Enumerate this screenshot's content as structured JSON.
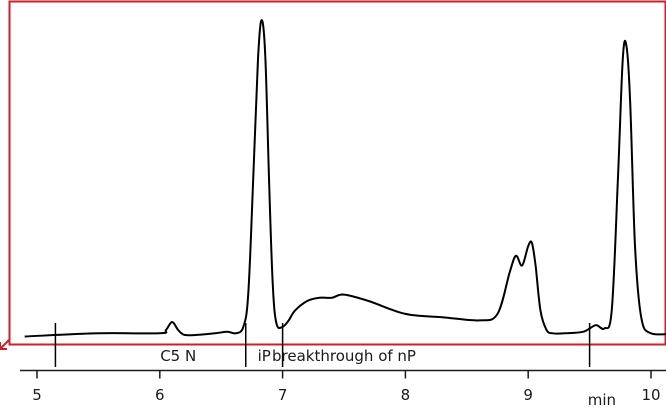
{
  "chart_data": {
    "type": "line",
    "title": "",
    "xlabel": "",
    "x_unit_label": "min",
    "ylabel": "",
    "xlim": [
      4.9,
      10.2
    ],
    "ylim": [
      0,
      1.0
    ],
    "grid": false,
    "legend": "none",
    "x_ticks": [
      {
        "value": 5,
        "label": "5"
      },
      {
        "value": 6,
        "label": "6"
      },
      {
        "value": 7,
        "label": "7"
      },
      {
        "value": 8,
        "label": "8"
      },
      {
        "value": 9,
        "label": "9"
      },
      {
        "value": 10,
        "label": "10"
      }
    ],
    "segment_markers": [
      5.15,
      6.7,
      7.0,
      9.5
    ],
    "segment_labels": [
      {
        "text": "C5 N",
        "x": 6.15
      },
      {
        "text": "iP",
        "x": 6.85
      },
      {
        "text": "breakthrough of nP",
        "x": 7.5
      }
    ],
    "series": [
      {
        "x": [
          4.9,
          5.5,
          6.0,
          6.05,
          6.1,
          6.15,
          6.2,
          6.3,
          6.45,
          6.55,
          6.62,
          6.68,
          6.72,
          6.76,
          6.8,
          6.83,
          6.86,
          6.89,
          6.92,
          6.95,
          7.0,
          7.05,
          7.1,
          7.2,
          7.3,
          7.4,
          7.5,
          7.7,
          8.0,
          8.3,
          8.6,
          8.75,
          8.85,
          8.9,
          8.95,
          9.0,
          9.03,
          9.06,
          9.1,
          9.15,
          9.2,
          9.3,
          9.45,
          9.55,
          9.62,
          9.68,
          9.73,
          9.77,
          9.8,
          9.83,
          9.87,
          9.92,
          10.0,
          10.2
        ],
        "y": [
          0.02,
          0.03,
          0.03,
          0.04,
          0.065,
          0.04,
          0.025,
          0.025,
          0.03,
          0.035,
          0.03,
          0.05,
          0.15,
          0.5,
          0.88,
          1.0,
          0.88,
          0.5,
          0.18,
          0.06,
          0.05,
          0.07,
          0.1,
          0.13,
          0.14,
          0.14,
          0.15,
          0.13,
          0.09,
          0.08,
          0.07,
          0.09,
          0.22,
          0.27,
          0.24,
          0.3,
          0.31,
          0.24,
          0.1,
          0.04,
          0.03,
          0.03,
          0.035,
          0.055,
          0.045,
          0.1,
          0.5,
          0.88,
          0.92,
          0.75,
          0.3,
          0.08,
          0.03,
          0.03
        ]
      }
    ]
  },
  "colors": {
    "frame": "#c8212b",
    "trace": "#000000",
    "axis": "#1a1a1a"
  }
}
